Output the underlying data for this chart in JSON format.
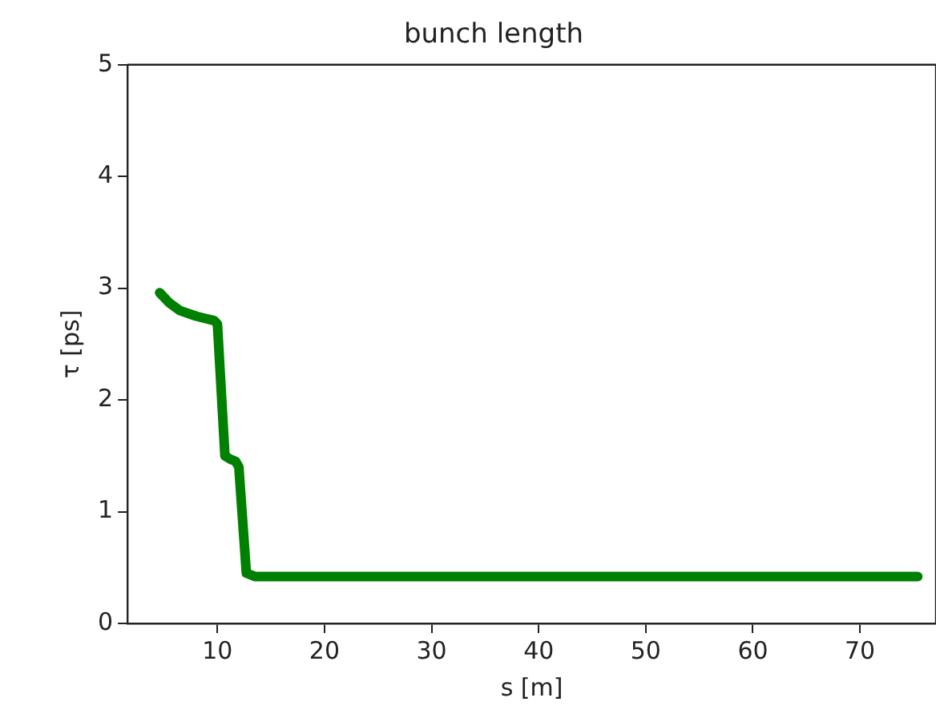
{
  "chart_data": {
    "type": "line",
    "title": "bunch length",
    "xlabel": "s [m]",
    "ylabel": "τ [ps]",
    "xlim": [
      1.6,
      77.1
    ],
    "ylim": [
      0,
      5
    ],
    "xticks": [
      10,
      20,
      30,
      40,
      50,
      60,
      70
    ],
    "yticks": [
      0,
      1,
      2,
      3,
      4,
      5
    ],
    "grid": false,
    "legend": false,
    "marker": "none",
    "line_style": "solid",
    "series": [
      {
        "color": "#008000",
        "x": [
          4.6,
          5.5,
          6.5,
          8,
          9.7,
          10.0,
          10.7,
          11.2,
          11.7,
          12.0,
          12.7,
          13.5,
          20,
          40,
          60,
          75.4
        ],
        "values": [
          2.96,
          2.87,
          2.8,
          2.75,
          2.71,
          2.68,
          1.5,
          1.47,
          1.45,
          1.4,
          0.45,
          0.42,
          0.42,
          0.42,
          0.42,
          0.42
        ]
      }
    ]
  }
}
